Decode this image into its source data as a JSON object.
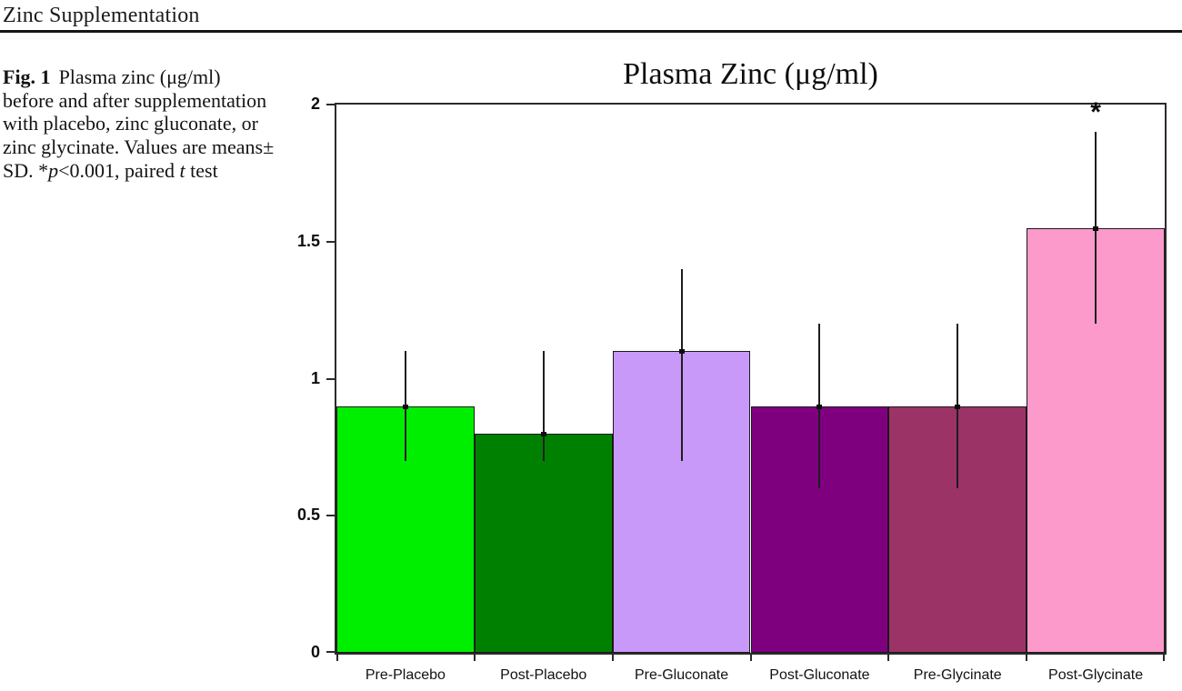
{
  "page": {
    "running_head": "Zinc Supplementation"
  },
  "figure_caption": {
    "label": "Fig. 1",
    "body_1": "Plasma zinc (μg/ml) before and after supplementation with placebo, zinc gluconate, or zinc glycinate. Values are means± SD. *",
    "p_var": "p",
    "body_2": "<0.001, paired ",
    "t_var": "t",
    "body_3": " test"
  },
  "chart_data": {
    "type": "bar",
    "title": "Plasma Zinc (μg/ml)",
    "categories": [
      "Pre-Placebo",
      "Post-Placebo",
      "Pre-Gluconate",
      "Post-Gluconate",
      "Pre-Glycinate",
      "Post-Glycinate"
    ],
    "values": [
      0.9,
      0.8,
      1.1,
      0.9,
      0.9,
      1.55
    ],
    "error_low": [
      0.7,
      0.7,
      0.7,
      0.6,
      0.6,
      1.2
    ],
    "error_high": [
      1.1,
      1.1,
      1.4,
      1.2,
      1.2,
      1.9
    ],
    "bar_colors": [
      "#00ee00",
      "#008000",
      "#c999fa",
      "#7f007f",
      "#9b3367",
      "#fc9acb"
    ],
    "significance": [
      "",
      "",
      "",
      "",
      "",
      "*"
    ],
    "ylim": [
      0,
      2
    ],
    "yticks": [
      0,
      0.5,
      1,
      1.5,
      2
    ],
    "ytick_labels": [
      "0",
      "0.5",
      "1",
      "1.5",
      "2"
    ],
    "grid": false,
    "legend_position": "none",
    "xlabel": "",
    "ylabel": ""
  }
}
